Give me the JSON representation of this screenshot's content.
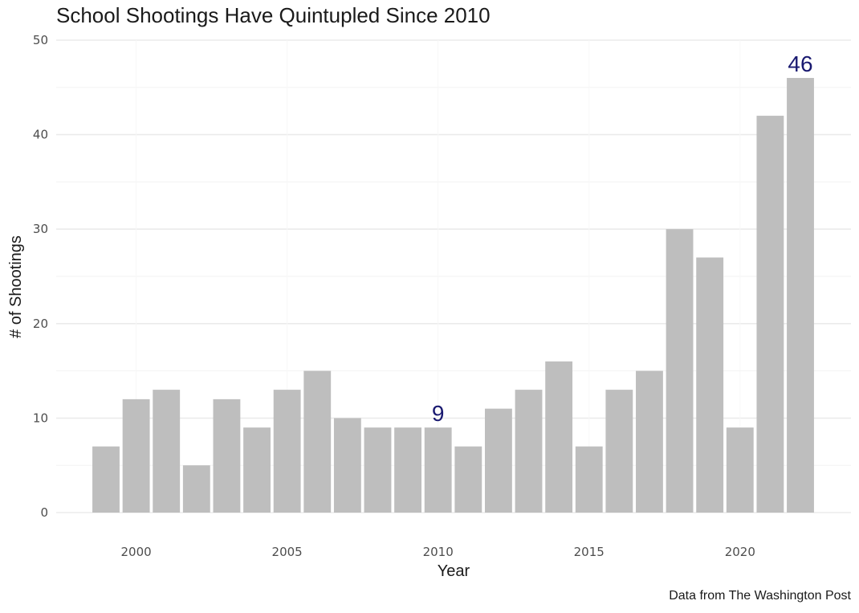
{
  "chart_data": {
    "type": "bar",
    "title": "School Shootings Have Quintupled Since 2010",
    "xlabel": "Year",
    "ylabel": "# of Shootings",
    "caption": "Data from The Washington Post",
    "categories": [
      1999,
      2000,
      2001,
      2002,
      2003,
      2004,
      2005,
      2006,
      2007,
      2008,
      2009,
      2010,
      2011,
      2012,
      2013,
      2014,
      2015,
      2016,
      2017,
      2018,
      2019,
      2020,
      2021,
      2022
    ],
    "values": [
      7,
      12,
      13,
      5,
      12,
      9,
      13,
      15,
      10,
      9,
      9,
      9,
      7,
      11,
      13,
      16,
      7,
      13,
      15,
      30,
      27,
      9,
      42,
      46
    ],
    "ylim": [
      0,
      50
    ],
    "y_ticks": [
      0,
      10,
      20,
      30,
      40,
      50
    ],
    "x_ticks": [
      2000,
      2005,
      2010,
      2015,
      2020
    ],
    "grid": true,
    "bar_color": "#bebebe",
    "annotations": [
      {
        "x": 2010,
        "label": "9",
        "color": "#191970"
      },
      {
        "x": 2022,
        "label": "46",
        "color": "#191970"
      }
    ]
  }
}
